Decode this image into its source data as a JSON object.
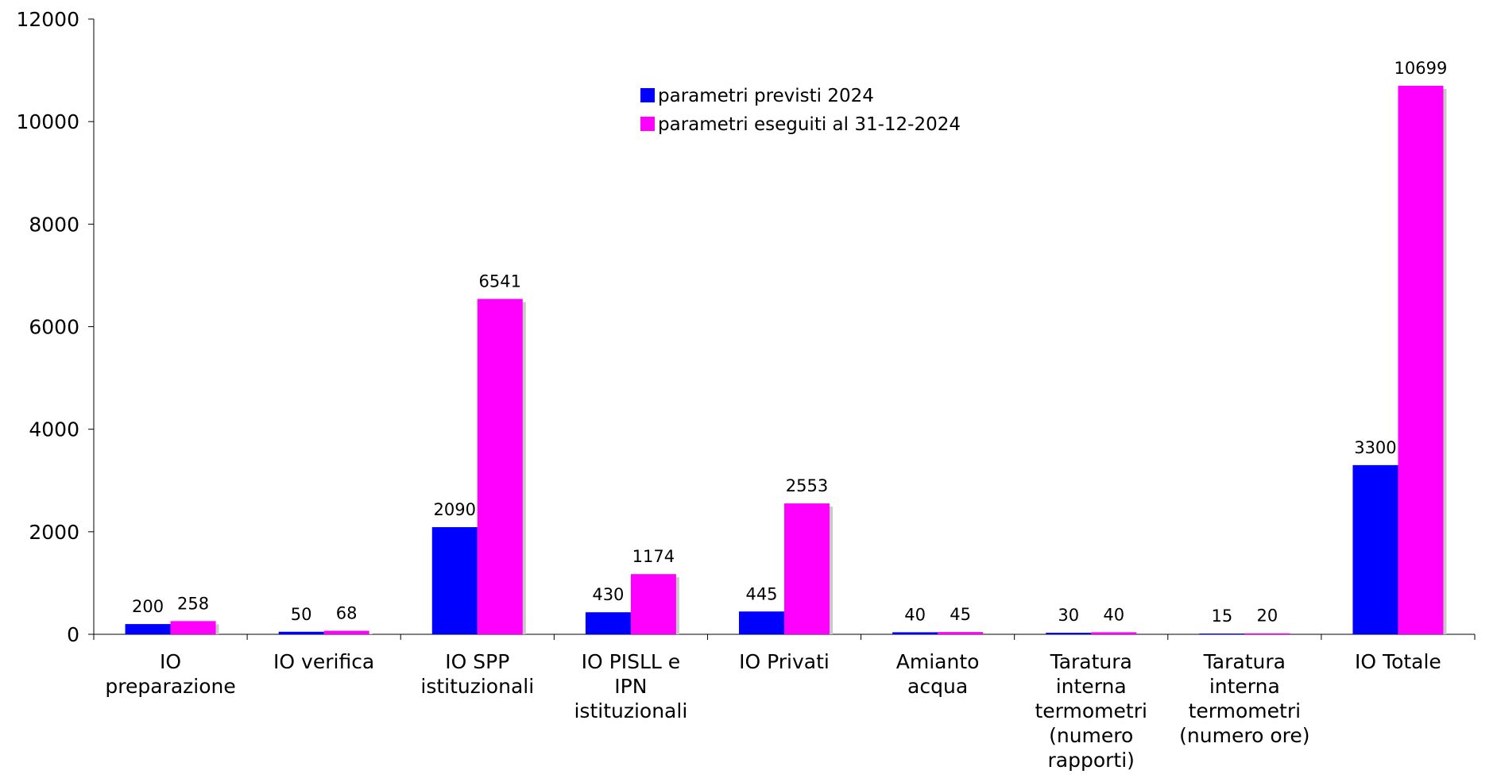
{
  "chart_data": {
    "type": "bar",
    "categories": [
      [
        "IO",
        "preparazione"
      ],
      [
        "IO verifica"
      ],
      [
        "IO SPP",
        "istituzionali"
      ],
      [
        "IO PISLL e",
        "IPN",
        "istituzionali"
      ],
      [
        "IO Privati"
      ],
      [
        "Amianto",
        "acqua"
      ],
      [
        "Taratura",
        "interna",
        "termometri",
        "(numero",
        "rapporti)"
      ],
      [
        "Taratura",
        "interna",
        "termometri",
        "(numero ore)"
      ],
      [
        "IO Totale"
      ]
    ],
    "series": [
      {
        "name": "parametri previsti 2024",
        "color": "#0000FF",
        "values": [
          200,
          50,
          2090,
          430,
          445,
          40,
          30,
          15,
          3300
        ]
      },
      {
        "name": "parametri eseguiti al 31-12-2024",
        "color": "#FF00FF",
        "values": [
          258,
          68,
          6541,
          1174,
          2553,
          45,
          40,
          20,
          10699
        ]
      }
    ],
    "ylim": [
      0,
      12000
    ],
    "yticks": [
      0,
      2000,
      4000,
      6000,
      8000,
      10000,
      12000
    ],
    "data_labels": true,
    "legend_position": "top-center",
    "grid": false
  }
}
